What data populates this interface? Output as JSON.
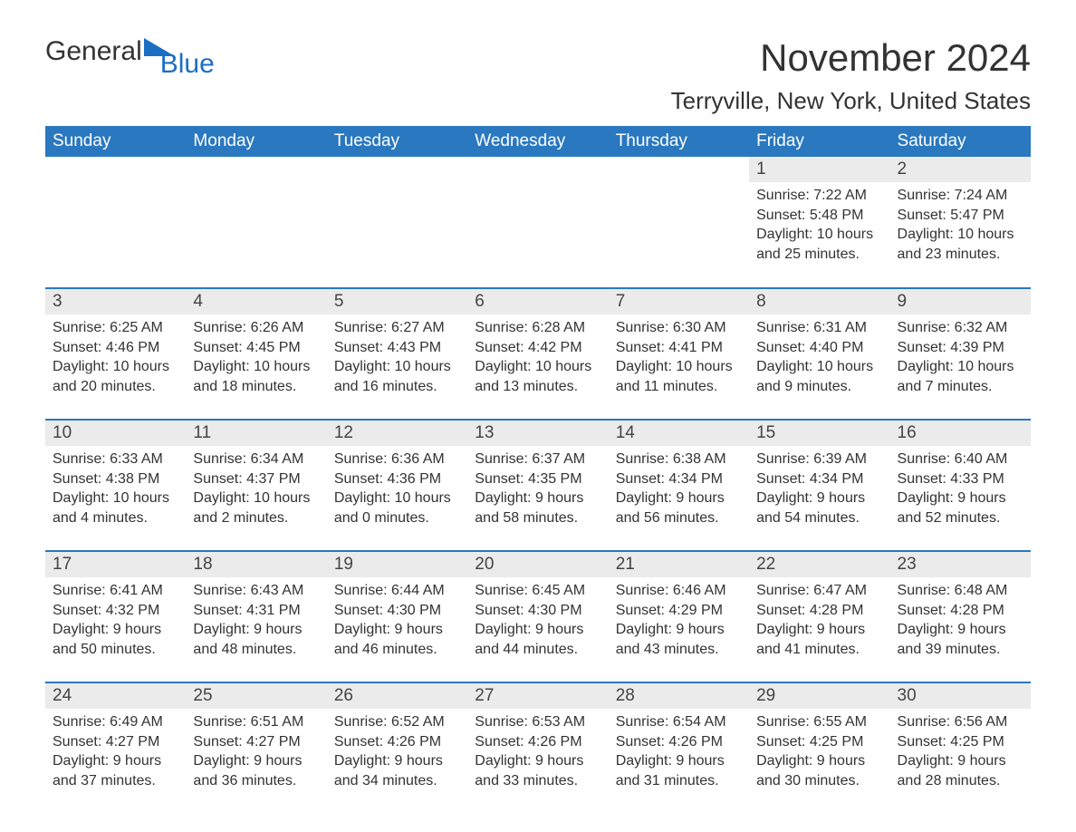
{
  "logo": {
    "text1": "General",
    "text2": "Blue",
    "flag_color": "#1b6ec2"
  },
  "title": "November 2024",
  "location": "Terryville, New York, United States",
  "colors": {
    "header_bg": "#2a78c0",
    "header_text": "#ffffff",
    "daynum_bg": "#ebebeb",
    "row_border": "#2a78c0",
    "body_text": "#333333",
    "background": "#ffffff"
  },
  "font": {
    "family": "Arial",
    "title_size": 42,
    "location_size": 26,
    "header_size": 19,
    "body_size": 16
  },
  "day_headers": [
    "Sunday",
    "Monday",
    "Tuesday",
    "Wednesday",
    "Thursday",
    "Friday",
    "Saturday"
  ],
  "weeks": [
    [
      null,
      null,
      null,
      null,
      null,
      {
        "num": "1",
        "sunrise": "7:22 AM",
        "sunset": "5:48 PM",
        "daylight": "10 hours and 25 minutes."
      },
      {
        "num": "2",
        "sunrise": "7:24 AM",
        "sunset": "5:47 PM",
        "daylight": "10 hours and 23 minutes."
      }
    ],
    [
      {
        "num": "3",
        "sunrise": "6:25 AM",
        "sunset": "4:46 PM",
        "daylight": "10 hours and 20 minutes."
      },
      {
        "num": "4",
        "sunrise": "6:26 AM",
        "sunset": "4:45 PM",
        "daylight": "10 hours and 18 minutes."
      },
      {
        "num": "5",
        "sunrise": "6:27 AM",
        "sunset": "4:43 PM",
        "daylight": "10 hours and 16 minutes."
      },
      {
        "num": "6",
        "sunrise": "6:28 AM",
        "sunset": "4:42 PM",
        "daylight": "10 hours and 13 minutes."
      },
      {
        "num": "7",
        "sunrise": "6:30 AM",
        "sunset": "4:41 PM",
        "daylight": "10 hours and 11 minutes."
      },
      {
        "num": "8",
        "sunrise": "6:31 AM",
        "sunset": "4:40 PM",
        "daylight": "10 hours and 9 minutes."
      },
      {
        "num": "9",
        "sunrise": "6:32 AM",
        "sunset": "4:39 PM",
        "daylight": "10 hours and 7 minutes."
      }
    ],
    [
      {
        "num": "10",
        "sunrise": "6:33 AM",
        "sunset": "4:38 PM",
        "daylight": "10 hours and 4 minutes."
      },
      {
        "num": "11",
        "sunrise": "6:34 AM",
        "sunset": "4:37 PM",
        "daylight": "10 hours and 2 minutes."
      },
      {
        "num": "12",
        "sunrise": "6:36 AM",
        "sunset": "4:36 PM",
        "daylight": "10 hours and 0 minutes."
      },
      {
        "num": "13",
        "sunrise": "6:37 AM",
        "sunset": "4:35 PM",
        "daylight": "9 hours and 58 minutes."
      },
      {
        "num": "14",
        "sunrise": "6:38 AM",
        "sunset": "4:34 PM",
        "daylight": "9 hours and 56 minutes."
      },
      {
        "num": "15",
        "sunrise": "6:39 AM",
        "sunset": "4:34 PM",
        "daylight": "9 hours and 54 minutes."
      },
      {
        "num": "16",
        "sunrise": "6:40 AM",
        "sunset": "4:33 PM",
        "daylight": "9 hours and 52 minutes."
      }
    ],
    [
      {
        "num": "17",
        "sunrise": "6:41 AM",
        "sunset": "4:32 PM",
        "daylight": "9 hours and 50 minutes."
      },
      {
        "num": "18",
        "sunrise": "6:43 AM",
        "sunset": "4:31 PM",
        "daylight": "9 hours and 48 minutes."
      },
      {
        "num": "19",
        "sunrise": "6:44 AM",
        "sunset": "4:30 PM",
        "daylight": "9 hours and 46 minutes."
      },
      {
        "num": "20",
        "sunrise": "6:45 AM",
        "sunset": "4:30 PM",
        "daylight": "9 hours and 44 minutes."
      },
      {
        "num": "21",
        "sunrise": "6:46 AM",
        "sunset": "4:29 PM",
        "daylight": "9 hours and 43 minutes."
      },
      {
        "num": "22",
        "sunrise": "6:47 AM",
        "sunset": "4:28 PM",
        "daylight": "9 hours and 41 minutes."
      },
      {
        "num": "23",
        "sunrise": "6:48 AM",
        "sunset": "4:28 PM",
        "daylight": "9 hours and 39 minutes."
      }
    ],
    [
      {
        "num": "24",
        "sunrise": "6:49 AM",
        "sunset": "4:27 PM",
        "daylight": "9 hours and 37 minutes."
      },
      {
        "num": "25",
        "sunrise": "6:51 AM",
        "sunset": "4:27 PM",
        "daylight": "9 hours and 36 minutes."
      },
      {
        "num": "26",
        "sunrise": "6:52 AM",
        "sunset": "4:26 PM",
        "daylight": "9 hours and 34 minutes."
      },
      {
        "num": "27",
        "sunrise": "6:53 AM",
        "sunset": "4:26 PM",
        "daylight": "9 hours and 33 minutes."
      },
      {
        "num": "28",
        "sunrise": "6:54 AM",
        "sunset": "4:26 PM",
        "daylight": "9 hours and 31 minutes."
      },
      {
        "num": "29",
        "sunrise": "6:55 AM",
        "sunset": "4:25 PM",
        "daylight": "9 hours and 30 minutes."
      },
      {
        "num": "30",
        "sunrise": "6:56 AM",
        "sunset": "4:25 PM",
        "daylight": "9 hours and 28 minutes."
      }
    ]
  ],
  "labels": {
    "sunrise": "Sunrise: ",
    "sunset": "Sunset: ",
    "daylight": "Daylight: "
  }
}
